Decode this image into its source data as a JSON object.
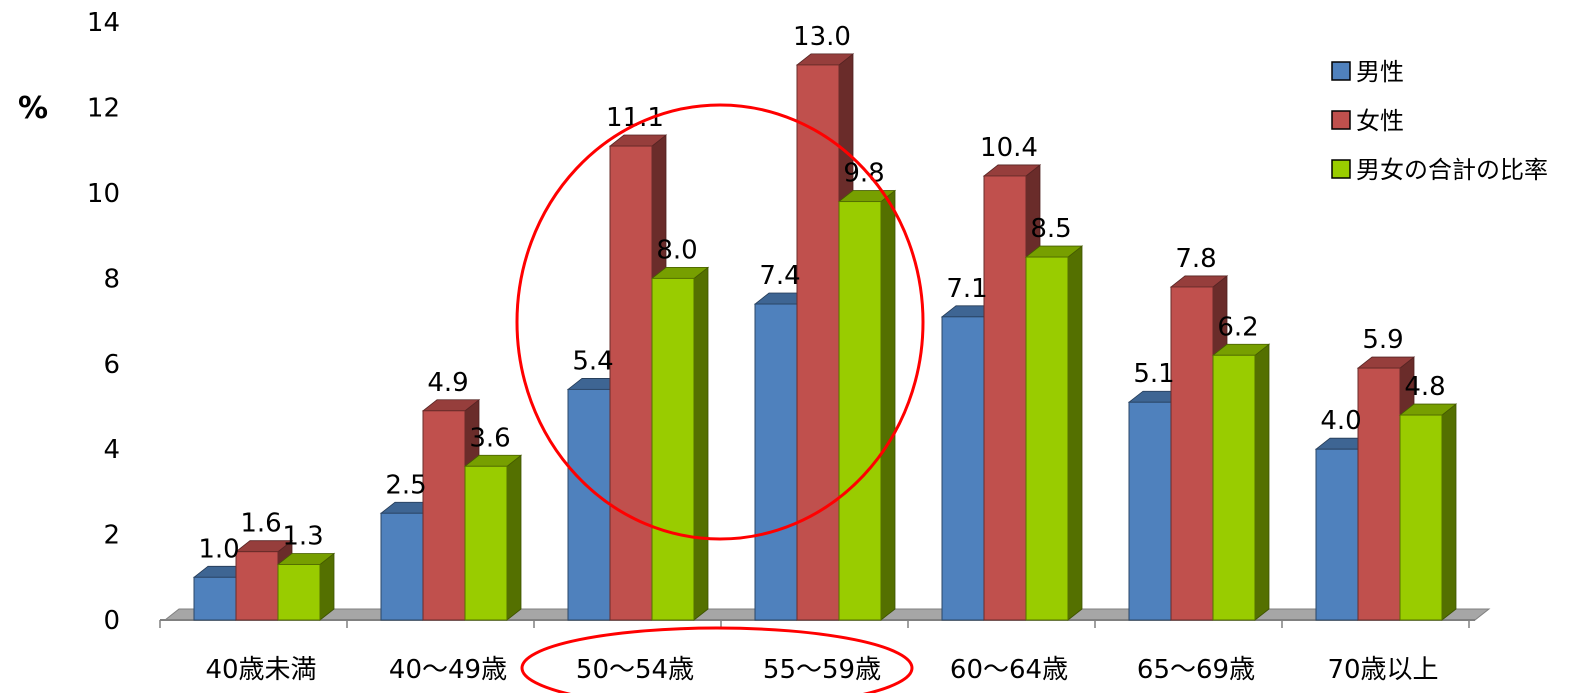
{
  "chart_data": {
    "type": "bar",
    "ylabel": "%",
    "ylim": [
      0,
      14
    ],
    "yticks": [
      0,
      2,
      4,
      6,
      8,
      10,
      12,
      14
    ],
    "categories": [
      "40歳未満",
      "40～49歳",
      "50～54歳",
      "55～59歳",
      "60～64歳",
      "65～69歳",
      "70歳以上"
    ],
    "series": [
      {
        "name": "男性",
        "color": "#4f81bd",
        "values": [
          1.0,
          2.5,
          5.4,
          7.4,
          7.1,
          5.1,
          4.0
        ]
      },
      {
        "name": "女性",
        "color": "#c0504d",
        "values": [
          1.6,
          4.9,
          11.1,
          13.0,
          10.4,
          7.8,
          5.9
        ]
      },
      {
        "name": "男女の合計の比率",
        "color": "#99cc00",
        "values": [
          1.3,
          3.6,
          8.0,
          9.8,
          8.5,
          6.2,
          4.8
        ]
      }
    ],
    "legend_position": "top-right",
    "highlight": {
      "categories": [
        "50～54歳",
        "55～59歳"
      ],
      "color": "#ff0000"
    }
  }
}
